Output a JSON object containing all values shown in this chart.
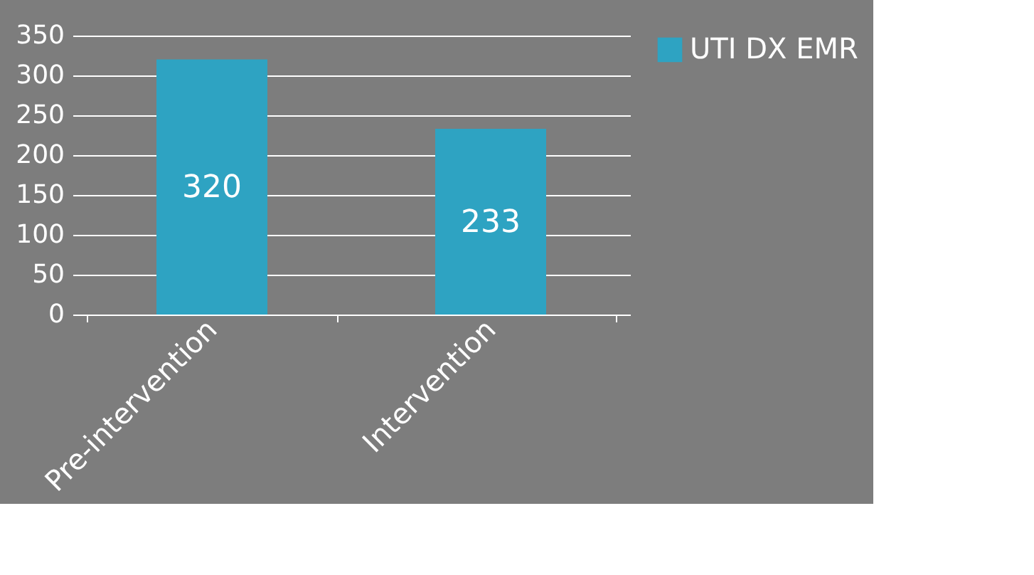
{
  "chart_data": {
    "type": "bar",
    "categories": [
      "Pre-intervention",
      "Intervention"
    ],
    "series": [
      {
        "name": "UTI DX EMR",
        "color": "#2ea3c2",
        "values": [
          320,
          233
        ]
      }
    ],
    "ylim": [
      0,
      350
    ],
    "yticks": [
      0,
      50,
      100,
      150,
      200,
      250,
      300,
      350
    ],
    "grid": "y",
    "legend": "right",
    "data_labels": true
  }
}
